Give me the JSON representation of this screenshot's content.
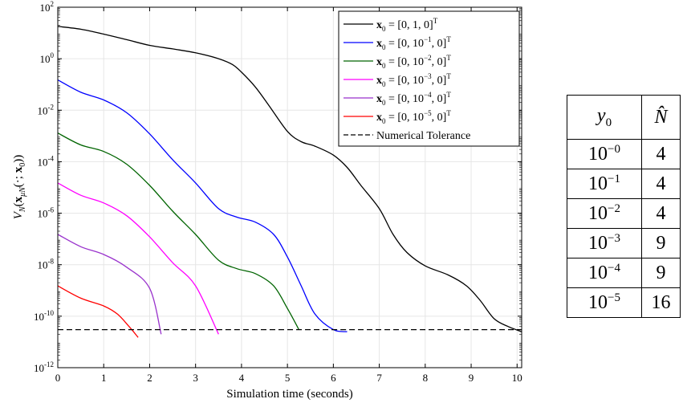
{
  "chart_data": {
    "type": "line",
    "title": "",
    "xlabel": "Simulation time (seconds)",
    "ylabel": "V_N(x_{μN}(·; x_0))",
    "xlim": [
      0,
      10.1
    ],
    "ylim": [
      1e-12,
      100
    ],
    "yscale": "log",
    "grid": true,
    "legend_position": "top-right",
    "x_ticks": [
      "0",
      "1",
      "2",
      "3",
      "4",
      "5",
      "6",
      "7",
      "8",
      "9",
      "10"
    ],
    "y_ticks": [
      {
        "base": "10",
        "exp": "2"
      },
      {
        "base": "10",
        "exp": "0"
      },
      {
        "base": "10",
        "exp": "-2"
      },
      {
        "base": "10",
        "exp": "-4"
      },
      {
        "base": "10",
        "exp": "-6"
      },
      {
        "base": "10",
        "exp": "-8"
      },
      {
        "base": "10",
        "exp": "-10"
      },
      {
        "base": "10",
        "exp": "-12"
      }
    ],
    "series": [
      {
        "name": "x0 = [0, 1, 0]^T",
        "color": "#000000",
        "points": [
          [
            0,
            18
          ],
          [
            0.5,
            14
          ],
          [
            1,
            9
          ],
          [
            1.5,
            5.5
          ],
          [
            2,
            3.3
          ],
          [
            2.5,
            2.4
          ],
          [
            3,
            1.7
          ],
          [
            3.5,
            1.0
          ],
          [
            3.8,
            0.6
          ],
          [
            4.0,
            0.3
          ],
          [
            4.3,
            0.08
          ],
          [
            4.6,
            0.015
          ],
          [
            5.0,
            0.0015
          ],
          [
            5.3,
            0.0006
          ],
          [
            5.6,
            0.0004
          ],
          [
            6.0,
            0.00018
          ],
          [
            6.3,
            6e-05
          ],
          [
            6.6,
            1.2e-05
          ],
          [
            7.0,
            1.5e-06
          ],
          [
            7.3,
            1.5e-07
          ],
          [
            7.6,
            3e-08
          ],
          [
            8.0,
            9e-09
          ],
          [
            8.5,
            4e-09
          ],
          [
            8.9,
            1.5e-09
          ],
          [
            9.2,
            4e-10
          ],
          [
            9.5,
            8e-11
          ],
          [
            9.8,
            4e-11
          ],
          [
            10.1,
            2.5e-11
          ]
        ]
      },
      {
        "name": "x0 = [0, 10^-1, 0]^T",
        "color": "#0000ff",
        "points": [
          [
            0,
            0.15
          ],
          [
            0.5,
            0.05
          ],
          [
            1,
            0.025
          ],
          [
            1.5,
            0.008
          ],
          [
            2,
            0.0012
          ],
          [
            2.5,
            0.00012
          ],
          [
            3,
            1.5e-05
          ],
          [
            3.5,
            1.5e-06
          ],
          [
            3.9,
            7e-07
          ],
          [
            4.3,
            4.5e-07
          ],
          [
            4.7,
            1.5e-07
          ],
          [
            5.0,
            2e-08
          ],
          [
            5.3,
            1.5e-09
          ],
          [
            5.6,
            1.2e-10
          ],
          [
            6.0,
            3e-11
          ],
          [
            6.3,
            2.5e-11
          ]
        ]
      },
      {
        "name": "x0 = [0, 10^-2, 0]^T",
        "color": "#006400",
        "points": [
          [
            0,
            0.0013
          ],
          [
            0.5,
            0.00045
          ],
          [
            1,
            0.00025
          ],
          [
            1.5,
            8e-05
          ],
          [
            2,
            1.2e-05
          ],
          [
            2.5,
            1.2e-06
          ],
          [
            3,
            1.5e-07
          ],
          [
            3.5,
            1.5e-08
          ],
          [
            3.9,
            7e-09
          ],
          [
            4.3,
            4.5e-09
          ],
          [
            4.7,
            1.5e-09
          ],
          [
            5.0,
            2e-10
          ],
          [
            5.25,
            3e-11
          ]
        ]
      },
      {
        "name": "x0 = [0, 10^-3, 0]^T",
        "color": "#ff00ff",
        "points": [
          [
            0,
            1.5e-05
          ],
          [
            0.5,
            5e-06
          ],
          [
            1,
            2.5e-06
          ],
          [
            1.5,
            8e-07
          ],
          [
            2,
            1.2e-07
          ],
          [
            2.5,
            1.2e-08
          ],
          [
            3,
            1.5e-09
          ],
          [
            3.5,
            2e-11
          ]
        ]
      },
      {
        "name": "x0 = [0, 10^-4, 0]^T",
        "color": "#9932cc",
        "points": [
          [
            0,
            1.5e-07
          ],
          [
            0.5,
            5e-08
          ],
          [
            1,
            2.5e-08
          ],
          [
            1.5,
            8e-09
          ],
          [
            2,
            1.2e-09
          ],
          [
            2.25,
            2e-11
          ]
        ]
      },
      {
        "name": "x0 = [0, 10^-5, 0]^T",
        "color": "#ff0000",
        "points": [
          [
            0,
            1.5e-09
          ],
          [
            0.5,
            5e-10
          ],
          [
            1,
            2.5e-10
          ],
          [
            1.3,
            1.2e-10
          ],
          [
            1.55,
            4e-11
          ],
          [
            1.75,
            1.5e-11
          ]
        ]
      },
      {
        "name": "Numerical Tolerance",
        "color": "#000000",
        "dashed": true,
        "points": [
          [
            0,
            3e-11
          ],
          [
            10.1,
            3e-11
          ]
        ]
      }
    ],
    "legend": [
      {
        "label_bold": "x",
        "label_sub": "0",
        "label_rest": " = [0, 1, 0]",
        "label_sup": "T",
        "color": "#000000"
      },
      {
        "label_bold": "x",
        "label_sub": "0",
        "label_rest": " = [0, 10",
        "label_sup2": "−1",
        "label_rest2": ", 0]",
        "label_sup": "T",
        "color": "#0000ff"
      },
      {
        "label_bold": "x",
        "label_sub": "0",
        "label_rest": " = [0, 10",
        "label_sup2": "−2",
        "label_rest2": ", 0]",
        "label_sup": "T",
        "color": "#006400"
      },
      {
        "label_bold": "x",
        "label_sub": "0",
        "label_rest": " = [0, 10",
        "label_sup2": "−3",
        "label_rest2": ", 0]",
        "label_sup": "T",
        "color": "#ff00ff"
      },
      {
        "label_bold": "x",
        "label_sub": "0",
        "label_rest": " = [0, 10",
        "label_sup2": "−4",
        "label_rest2": ", 0]",
        "label_sup": "T",
        "color": "#9932cc"
      },
      {
        "label_bold": "x",
        "label_sub": "0",
        "label_rest": " = [0, 10",
        "label_sup2": "−5",
        "label_rest2": ", 0]",
        "label_sup": "T",
        "color": "#ff0000"
      },
      {
        "label_plain": "Numerical Tolerance",
        "color": "#000000",
        "dashed": true
      }
    ]
  },
  "table": {
    "header": {
      "col0": "y",
      "col0_sub": "0",
      "col1": "N̂"
    },
    "rows": [
      {
        "base": "10",
        "exp": "−0",
        "n": "4"
      },
      {
        "base": "10",
        "exp": "−1",
        "n": "4"
      },
      {
        "base": "10",
        "exp": "−2",
        "n": "4"
      },
      {
        "base": "10",
        "exp": "−3",
        "n": "9"
      },
      {
        "base": "10",
        "exp": "−4",
        "n": "9"
      },
      {
        "base": "10",
        "exp": "−5",
        "n": "16"
      }
    ]
  }
}
